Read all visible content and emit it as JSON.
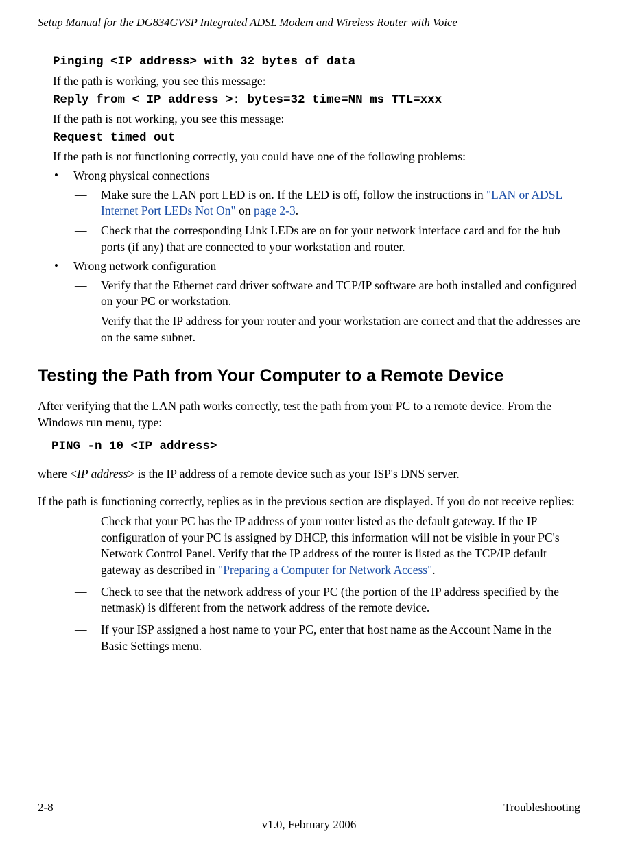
{
  "header": {
    "title": "Setup Manual for the DG834GVSP Integrated ADSL Modem and Wireless Router with Voice"
  },
  "content": {
    "ping_cmd": "Pinging <IP address> with 32 bytes of data",
    "path_working": "If the path is working, you see this message:",
    "reply_msg": "Reply from < IP address >: bytes=32 time=NN ms TTL=xxx",
    "path_not_working": "If the path is not working, you see this message:",
    "timeout_msg": "Request timed out",
    "path_problem": "If the path is not functioning correctly, you could have one of the following problems:",
    "bullet1": "Wrong physical connections",
    "bullet1_dash1_pre": "Make sure the LAN port LED is on. If the LED is off, follow the instructions in ",
    "bullet1_dash1_link": "\"LAN or ADSL Internet Port LEDs Not On\"",
    "bullet1_dash1_on": " on ",
    "bullet1_dash1_page": "page 2-3",
    "bullet1_dash1_post": ".",
    "bullet1_dash2": "Check that the corresponding Link LEDs are on for your network interface card and for the hub ports (if any) that are connected to your workstation and router.",
    "bullet2": "Wrong network configuration",
    "bullet2_dash1": "Verify that the Ethernet card driver software and TCP/IP software are both installed and configured on your PC or workstation.",
    "bullet2_dash2": "Verify that the IP address for your router and your workstation are correct and that the addresses are on the same subnet."
  },
  "section": {
    "title": "Testing the Path from Your Computer to a Remote Device",
    "intro": "After verifying that the LAN path works correctly, test the path from your PC to a remote device. From the Windows run menu, type:",
    "ping_cmd": "PING -n 10 <IP address>",
    "where_pre": "where <",
    "where_italic": "IP address",
    "where_post": "> is the IP address of a remote device such as your ISP's DNS server.",
    "functioning": "If the path is functioning correctly, replies as in the previous section are displayed. If you do not receive replies:",
    "dash1_pre": "Check that your PC has the IP address of your router listed as the default gateway. If the IP configuration of your PC is assigned by DHCP, this information will not be visible in your PC's Network Control Panel. Verify that the IP address of the router is listed as the TCP/IP default gateway as described in ",
    "dash1_link": "\"Preparing a Computer for Network Access\"",
    "dash1_post": ".",
    "dash2": "Check to see that the network address of your PC (the portion of the IP address specified by the netmask) is different from the network address of the remote device.",
    "dash3": "If your ISP assigned a host name to your PC, enter that host name as the Account Name in the Basic Settings menu."
  },
  "footer": {
    "left": "2-8",
    "right": "Troubleshooting",
    "center": "v1.0, February 2006"
  },
  "colors": {
    "link": "#1a4ea8",
    "text": "#000000",
    "background": "#ffffff"
  }
}
